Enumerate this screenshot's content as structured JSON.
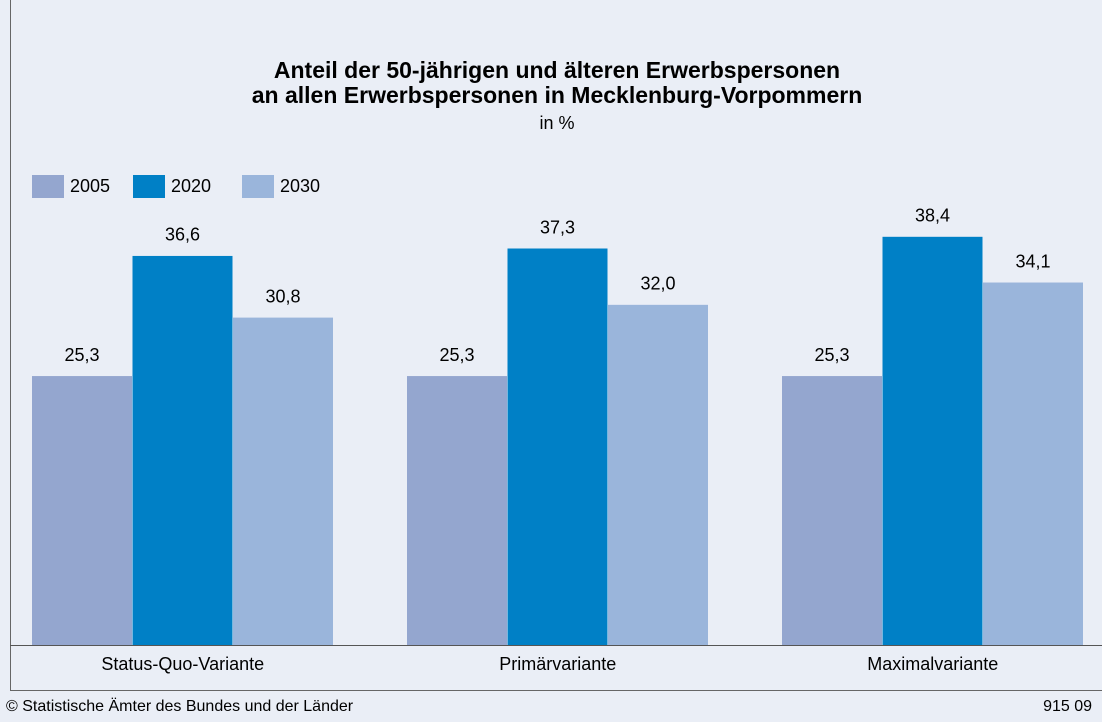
{
  "chart_data": {
    "type": "bar",
    "title": [
      "Anteil der 50-jährigen und älteren Erwerbspersonen",
      "an allen Erwerbspersonen in Mecklenburg-Vorpommern"
    ],
    "subtitle": "in %",
    "categories": [
      "Status-Quo-Variante",
      "Primärvariante",
      "Maximalvariante"
    ],
    "series": [
      {
        "name": "2005",
        "color": "#94a6cf",
        "values": [
          25.3,
          25.3,
          25.3
        ],
        "value_labels": [
          "25,3",
          "25,3",
          "25,3"
        ]
      },
      {
        "name": "2020",
        "color": "#0080c6",
        "values": [
          36.6,
          37.3,
          38.4
        ],
        "value_labels": [
          "36,6",
          "37,3",
          "38,4"
        ]
      },
      {
        "name": "2030",
        "color": "#9ab5db",
        "values": [
          30.8,
          32.0,
          34.1
        ],
        "value_labels": [
          "30,8",
          "32,0",
          "34,1"
        ]
      }
    ],
    "legend": "top-left",
    "footer": {
      "source": "© Statistische Ämter des Bundes und der Länder",
      "code": "915 09"
    }
  }
}
